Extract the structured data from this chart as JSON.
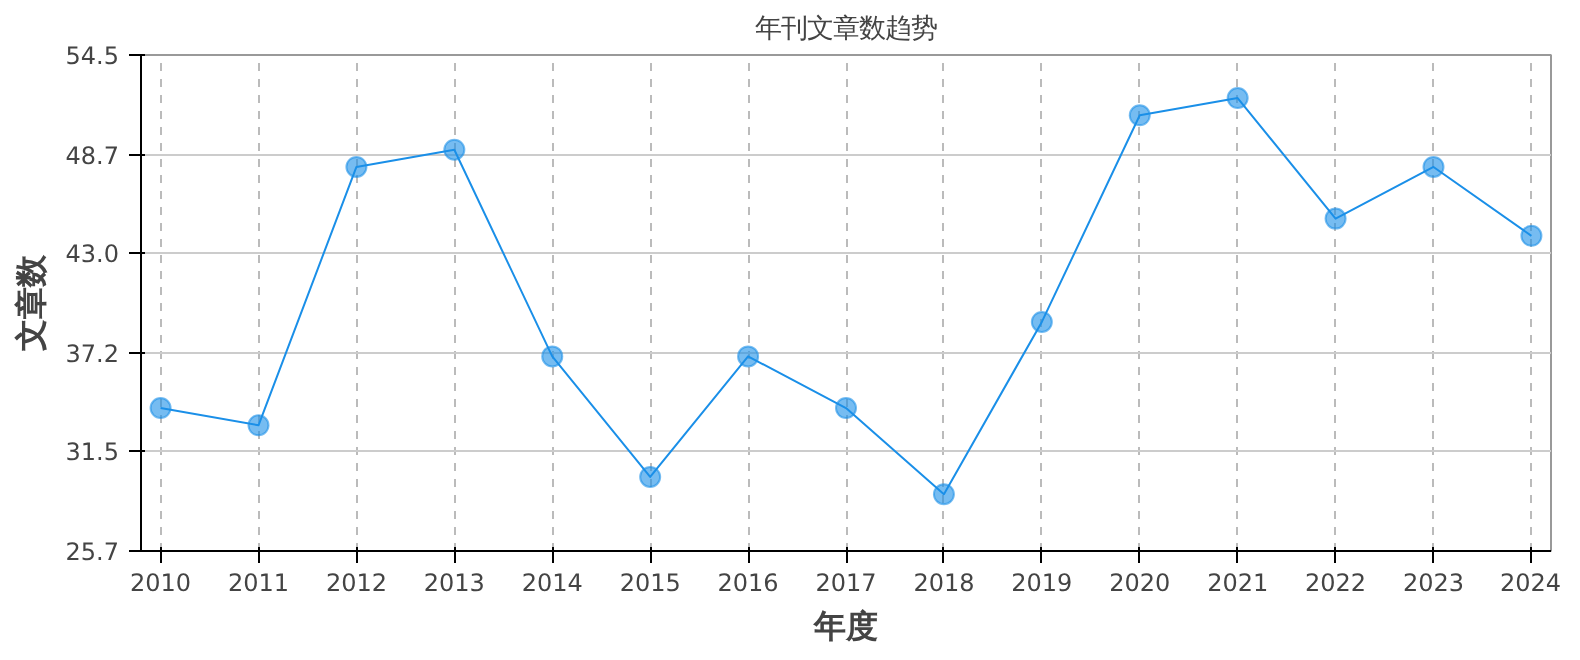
{
  "chart_data": {
    "type": "line",
    "title": "年刊文章数趋势",
    "xlabel": "年度",
    "ylabel": "文章数",
    "categories": [
      "2010",
      "2011",
      "2012",
      "2013",
      "2014",
      "2015",
      "2016",
      "2017",
      "2018",
      "2019",
      "2020",
      "2021",
      "2022",
      "2023",
      "2024"
    ],
    "series": [
      {
        "color": "#1a8fe8",
        "values": [
          34,
          33,
          48,
          49,
          37,
          30,
          37,
          34,
          29,
          39,
          51,
          52,
          45,
          48,
          44
        ]
      }
    ],
    "ylim": [
      25.7,
      54.5
    ],
    "yticks": [
      25.7,
      31.5,
      37.2,
      {
        "value": 43.0,
        "label": "43.0"
      },
      48.7,
      54.5
    ],
    "grid": true,
    "marker": "circle",
    "line_style": "solid"
  }
}
